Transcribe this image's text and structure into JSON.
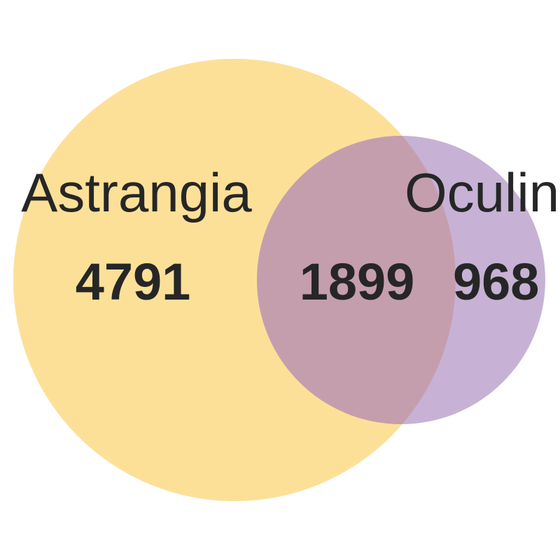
{
  "venn": {
    "sets": [
      {
        "name": "Astrangia",
        "only_count": "4791",
        "color": "#FDE098"
      },
      {
        "name": "Oculina",
        "only_count": "968",
        "color": "#C7B2D5"
      }
    ],
    "intersection": {
      "count": "1899",
      "color": "#C59EAE"
    }
  }
}
